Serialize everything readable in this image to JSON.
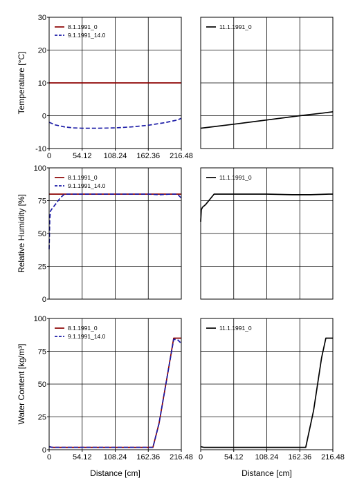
{
  "chart_data": [
    {
      "type": "line",
      "ylabel": "Temperature [°C]",
      "xlabel": "",
      "xlim": [
        0,
        216.48
      ],
      "ylim": [
        -10,
        30
      ],
      "xticks": [
        "0",
        "54.12",
        "108.24",
        "162.36",
        "216.48"
      ],
      "yticks": [
        "-10",
        "0",
        "10",
        "20",
        "30"
      ],
      "legend_position": "top-left",
      "series": [
        {
          "name": "8.1.1991_0",
          "color": "#8b0000",
          "dash": "solid",
          "x": [
            0,
            216.48
          ],
          "y": [
            10,
            10
          ]
        },
        {
          "name": "9.1.1991_14.0",
          "color": "#1a1aa6",
          "dash": "dashed",
          "x": [
            0,
            10,
            25,
            40,
            54.12,
            80,
            108.24,
            135,
            162.36,
            190,
            210,
            216.48
          ],
          "y": [
            -2,
            -2.8,
            -3.4,
            -3.7,
            -3.8,
            -3.8,
            -3.7,
            -3.4,
            -2.9,
            -2.1,
            -1.3,
            -0.8
          ]
        }
      ]
    },
    {
      "type": "line",
      "ylabel": "",
      "xlabel": "",
      "xlim": [
        0,
        216.48
      ],
      "ylim": [
        -10,
        30
      ],
      "xticks": [],
      "yticks": [],
      "legend_position": "top-left",
      "series": [
        {
          "name": "11.1.1991_0",
          "color": "#000000",
          "dash": "solid",
          "x": [
            0,
            54.12,
            108.24,
            162.36,
            200,
            216.48
          ],
          "y": [
            -3.8,
            -2.6,
            -1.3,
            0,
            0.8,
            1.2
          ]
        }
      ]
    },
    {
      "type": "line",
      "ylabel": "Relative Humidity [%]",
      "xlabel": "",
      "xlim": [
        0,
        216.48
      ],
      "ylim": [
        0,
        100
      ],
      "xticks": [],
      "yticks": [
        "0",
        "25",
        "50",
        "75",
        "100"
      ],
      "legend_position": "top-left",
      "series": [
        {
          "name": "8.1.1991_0",
          "color": "#8b0000",
          "dash": "solid",
          "x": [
            0,
            216.48
          ],
          "y": [
            80,
            80
          ]
        },
        {
          "name": "9.1.1991_14.0",
          "color": "#1a1aa6",
          "dash": "dashed",
          "x": [
            0,
            1,
            2,
            5,
            10,
            18,
            25,
            54.12,
            108.24,
            162.36,
            180,
            200,
            210,
            216.48
          ],
          "y": [
            38,
            60,
            67,
            69,
            72,
            77,
            80,
            80,
            80,
            80,
            79.5,
            80,
            80,
            77
          ]
        }
      ]
    },
    {
      "type": "line",
      "ylabel": "",
      "xlabel": "",
      "xlim": [
        0,
        216.48
      ],
      "ylim": [
        0,
        100
      ],
      "xticks": [],
      "yticks": [],
      "legend_position": "top-left",
      "series": [
        {
          "name": "11.1.1991_0",
          "color": "#000000",
          "dash": "solid",
          "x": [
            0,
            1,
            3,
            8,
            15,
            22,
            54.12,
            108.24,
            150,
            180,
            210,
            216.48
          ],
          "y": [
            59,
            68,
            70,
            72,
            76,
            80,
            80,
            80,
            79.5,
            79.5,
            80,
            80
          ]
        }
      ]
    },
    {
      "type": "line",
      "ylabel": "Water Content [kg/m³]",
      "xlabel": "Distance [cm]",
      "xlim": [
        0,
        216.48
      ],
      "ylim": [
        0,
        100
      ],
      "xticks": [
        "0",
        "54.12",
        "108.24",
        "162.36",
        "216.48"
      ],
      "yticks": [
        "0",
        "25",
        "50",
        "75",
        "100"
      ],
      "legend_position": "top-left",
      "series": [
        {
          "name": "8.1.1991_0",
          "color": "#8b0000",
          "dash": "solid",
          "x": [
            0,
            5,
            150,
            163,
            170,
            180,
            195,
            204,
            209,
            216.48
          ],
          "y": [
            2.3,
            1.8,
            1.8,
            1.8,
            1.8,
            20,
            60,
            85,
            85,
            85
          ]
        },
        {
          "name": "9.1.1991_14.0",
          "color": "#1a1aa6",
          "dash": "dashed",
          "x": [
            0,
            5,
            150,
            163,
            170,
            180,
            195,
            204,
            210,
            216.48
          ],
          "y": [
            2.3,
            1.8,
            1.8,
            1.8,
            1.8,
            20,
            60,
            84,
            84,
            81
          ]
        }
      ]
    },
    {
      "type": "line",
      "ylabel": "",
      "xlabel": "Distance [cm]",
      "xlim": [
        0,
        216.48
      ],
      "ylim": [
        0,
        100
      ],
      "xticks": [
        "0",
        "54.12",
        "108.24",
        "162.36",
        "216.48"
      ],
      "yticks": [],
      "legend_position": "top-left",
      "series": [
        {
          "name": "11.1.1991_0",
          "color": "#000000",
          "dash": "solid",
          "x": [
            0,
            5,
            150,
            163,
            172,
            185,
            198,
            205,
            216.48
          ],
          "y": [
            2.3,
            1.8,
            1.8,
            1.8,
            1.8,
            30,
            70,
            85,
            85
          ]
        }
      ]
    }
  ]
}
